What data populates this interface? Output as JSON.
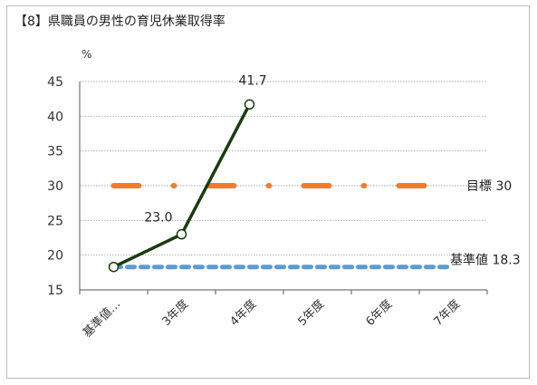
{
  "chart_data": {
    "type": "line",
    "title": "【8】県職員の男性の育児休業取得率",
    "ylabel": "%",
    "ylim": [
      15,
      45
    ],
    "yticks": [
      15,
      20,
      25,
      30,
      35,
      40,
      45
    ],
    "categories": [
      "基準値…",
      "3年度",
      "4年度",
      "5年度",
      "6年度",
      "7年度"
    ],
    "grid": true,
    "series": [
      {
        "role": "actual",
        "color": "#1a3b10",
        "values": [
          18.3,
          23.0,
          41.7,
          null,
          null,
          null
        ],
        "data_labels": [
          "",
          "23.0",
          "41.7",
          "",
          "",
          ""
        ]
      },
      {
        "role": "target",
        "color": "#ed7d31",
        "values": [
          30,
          30,
          30,
          30,
          30,
          30
        ],
        "end_label": "目標 30"
      },
      {
        "role": "baseline",
        "color": "#5b9bd5",
        "values": [
          18.3,
          18.3,
          18.3,
          18.3,
          18.3,
          18.3
        ],
        "end_label": "基準値 18.3"
      }
    ]
  }
}
